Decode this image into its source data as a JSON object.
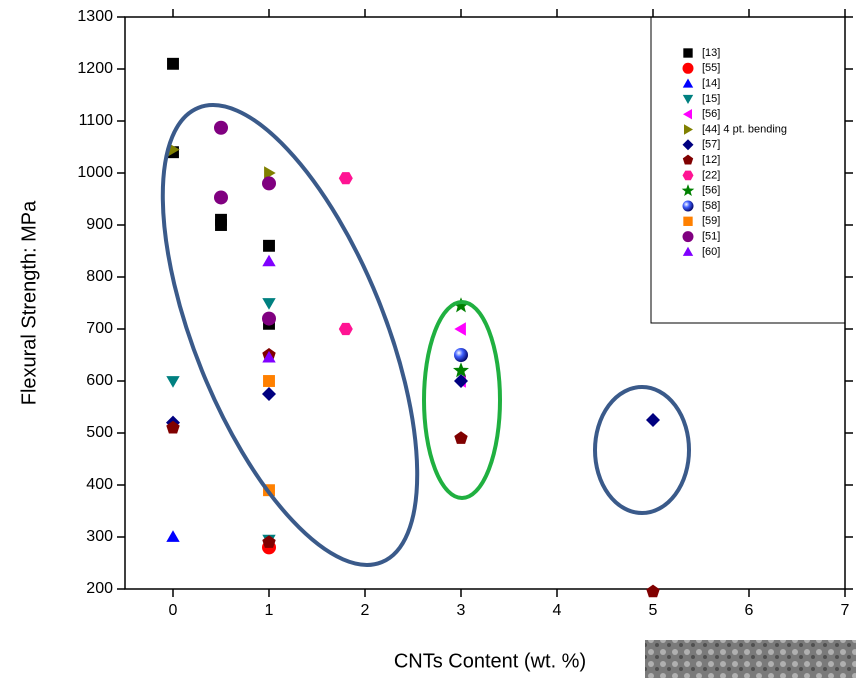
{
  "chart_data": {
    "type": "scatter",
    "x_label": "CNTs Content (wt. %)",
    "y_label": "Flexural Strength: MPa",
    "xlim": [
      -0.5,
      7
    ],
    "xticks": [
      0,
      1,
      2,
      3,
      4,
      5,
      6,
      7
    ],
    "ylim": [
      200,
      1300
    ],
    "yticks": [
      200,
      300,
      400,
      500,
      600,
      700,
      800,
      900,
      1000,
      1100,
      1200,
      1300
    ],
    "legend": "upper right",
    "series": [
      {
        "name": "[13]",
        "color": "#000000",
        "marker": "square",
        "x": [
          0,
          0,
          0.5,
          0.5,
          1,
          1
        ],
        "values": [
          1210,
          1040,
          910,
          900,
          860,
          710
        ]
      },
      {
        "name": "[55]",
        "color": "#ff0000",
        "marker": "circle",
        "x": [
          1
        ],
        "values": [
          280
        ]
      },
      {
        "name": "[14]",
        "color": "#0000ff",
        "marker": "triangle-up",
        "x": [
          0
        ],
        "values": [
          300
        ]
      },
      {
        "name": "[15]",
        "color": "#008080",
        "marker": "triangle-down",
        "x": [
          0,
          1,
          1
        ],
        "values": [
          600,
          750,
          295
        ]
      },
      {
        "name": "[56]",
        "color": "#ff00ff",
        "marker": "triangle-left",
        "x": [
          3,
          3
        ],
        "values": [
          700,
          600
        ]
      },
      {
        "name": "[44] 4 pt. bending",
        "color": "#808000",
        "marker": "triangle-right",
        "x": [
          0,
          1
        ],
        "values": [
          1045,
          1000
        ]
      },
      {
        "name": "[57]",
        "color": "#000080",
        "marker": "diamond",
        "x": [
          0,
          1,
          3,
          5
        ],
        "values": [
          520,
          575,
          600,
          525
        ]
      },
      {
        "name": "[12]",
        "color": "#800000",
        "marker": "pentagon",
        "x": [
          0,
          1,
          1,
          3,
          5
        ],
        "values": [
          510,
          650,
          290,
          490,
          195
        ]
      },
      {
        "name": "[22]",
        "color": "#ff1493",
        "marker": "hexagon",
        "x": [
          1.8,
          1.8
        ],
        "values": [
          990,
          700
        ]
      },
      {
        "name": "[56]",
        "color": "#008000",
        "marker": "star",
        "x": [
          3,
          3
        ],
        "values": [
          745,
          620
        ]
      },
      {
        "name": "[58]",
        "color": "#0000c0",
        "marker": "sphere",
        "x": [
          3
        ],
        "values": [
          650
        ]
      },
      {
        "name": "[59]",
        "color": "#ff8000",
        "marker": "square",
        "x": [
          1,
          1
        ],
        "values": [
          600,
          390
        ]
      },
      {
        "name": "[51]",
        "color": "#800080",
        "marker": "circle",
        "x": [
          0.5,
          0.5,
          1,
          1
        ],
        "values": [
          1087,
          953,
          980,
          720
        ]
      },
      {
        "name": "[60]",
        "color": "#8000ff",
        "marker": "triangle-up",
        "x": [
          1,
          1
        ],
        "values": [
          830,
          645
        ]
      }
    ]
  }
}
